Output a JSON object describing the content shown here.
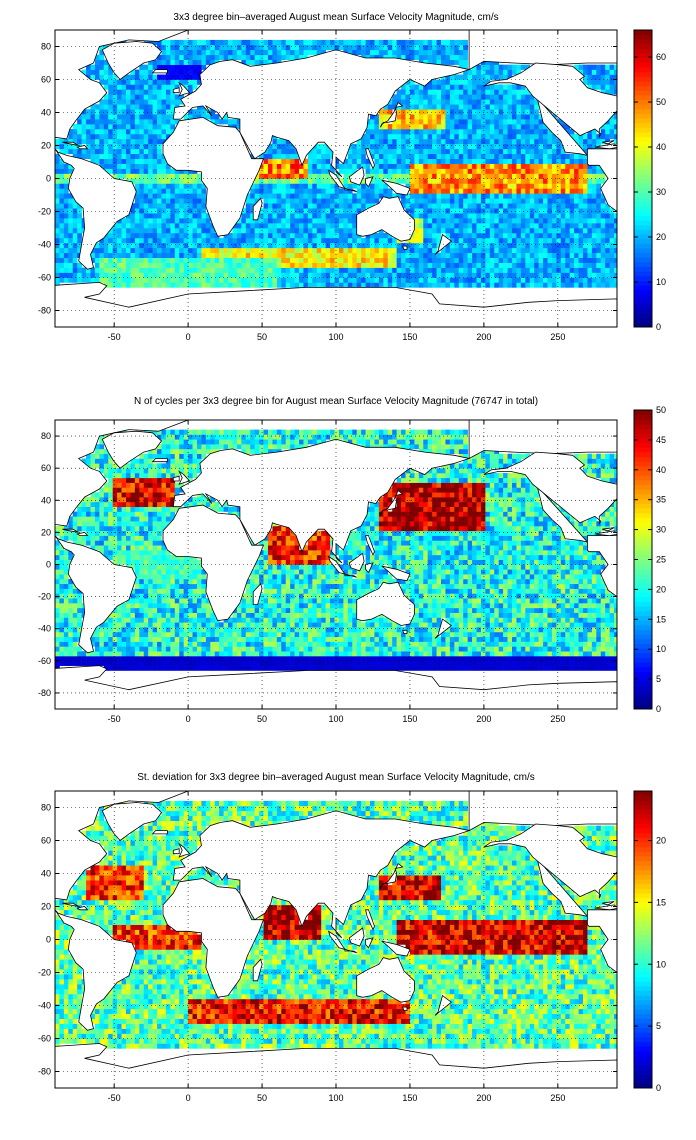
{
  "figure": {
    "panels": [
      {
        "id": "velocity-magnitude",
        "title": "3x3 degree bin–averaged August mean Surface Velocity Magnitude, cm/s",
        "colorbar": {
          "min": 0,
          "max": 66,
          "ticks": [
            0,
            10,
            20,
            30,
            40,
            50,
            60
          ]
        },
        "zones": [
          {
            "lat": [
              60,
              70
            ],
            "lon": [
              -20,
              10
            ],
            "value": 8
          },
          {
            "lat": [
              -10,
              10
            ],
            "lon": [
              150,
              270
            ],
            "value": 48
          },
          {
            "lat": [
              30,
              42
            ],
            "lon": [
              130,
              175
            ],
            "value": 45
          },
          {
            "lat": [
              0,
              12
            ],
            "lon": [
              45,
              80
            ],
            "value": 50
          },
          {
            "lat": [
              -55,
              -42
            ],
            "lon": [
              10,
              140
            ],
            "value": 42
          },
          {
            "lat": [
              -65,
              -48
            ],
            "lon": [
              -60,
              60
            ],
            "value": 30
          },
          {
            "lat": [
              -40,
              -25
            ],
            "lon": [
              140,
              160
            ],
            "value": 38
          }
        ]
      },
      {
        "id": "cycle-count",
        "title": "N of cycles per 3x3 degree bin for August mean Surface Velocity Magnitude (76747 in total)",
        "colorbar": {
          "min": 0,
          "max": 50,
          "ticks": [
            0,
            5,
            10,
            15,
            20,
            25,
            30,
            35,
            40,
            45,
            50
          ]
        },
        "zones": [
          {
            "lat": [
              20,
              50
            ],
            "lon": [
              130,
              200
            ],
            "value": 48
          },
          {
            "lat": [
              35,
              55
            ],
            "lon": [
              -50,
              -10
            ],
            "value": 45
          },
          {
            "lat": [
              0,
              25
            ],
            "lon": [
              55,
              95
            ],
            "value": 42
          },
          {
            "lat": [
              -66,
              -58
            ],
            "lon": [
              -90,
              290
            ],
            "value": 4
          },
          {
            "lat": [
              -10,
              10
            ],
            "lon": [
              -50,
              10
            ],
            "value": 22
          }
        ]
      },
      {
        "id": "standard-deviation",
        "title": "St. deviation for 3x3 degree bin–averaged August mean Surface Velocity Magnitude, cm/s",
        "colorbar": {
          "min": 0,
          "max": 24,
          "ticks": [
            0,
            5,
            10,
            15,
            20
          ]
        },
        "zones": [
          {
            "lat": [
              -10,
              12
            ],
            "lon": [
              140,
              270
            ],
            "value": 22
          },
          {
            "lat": [
              -50,
              -35
            ],
            "lon": [
              0,
              150
            ],
            "value": 21
          },
          {
            "lat": [
              0,
              20
            ],
            "lon": [
              50,
              90
            ],
            "value": 23
          },
          {
            "lat": [
              -5,
              8
            ],
            "lon": [
              -50,
              10
            ],
            "value": 20
          },
          {
            "lat": [
              25,
              45
            ],
            "lon": [
              -70,
              -30
            ],
            "value": 20
          },
          {
            "lat": [
              25,
              40
            ],
            "lon": [
              130,
              170
            ],
            "value": 22
          }
        ]
      }
    ],
    "x_ticks": [
      -50,
      0,
      50,
      100,
      150,
      200,
      250
    ],
    "y_ticks": [
      -80,
      -60,
      -40,
      -20,
      0,
      20,
      40,
      60,
      80
    ],
    "grid": "dotted"
  },
  "chart_data": [
    {
      "type": "heatmap",
      "title": "3x3 degree bin–averaged August mean Surface Velocity Magnitude, cm/s",
      "xlabel": "",
      "ylabel": "",
      "xlim": [
        -90,
        290
      ],
      "ylim": [
        -90,
        90
      ],
      "xticks": [
        -50,
        0,
        50,
        100,
        150,
        200,
        250
      ],
      "yticks": [
        -80,
        -60,
        -40,
        -20,
        0,
        20,
        40,
        60,
        80
      ],
      "bin_size_deg": 3,
      "colorscale": "jet",
      "color_range": [
        0,
        66
      ],
      "grid": true,
      "legend": "colorbar-right"
    },
    {
      "type": "heatmap",
      "title": "N of cycles per 3x3 degree bin for August mean Surface Velocity Magnitude (76747 in total)",
      "xlabel": "",
      "ylabel": "",
      "xlim": [
        -90,
        290
      ],
      "ylim": [
        -90,
        90
      ],
      "xticks": [
        -50,
        0,
        50,
        100,
        150,
        200,
        250
      ],
      "yticks": [
        -80,
        -60,
        -40,
        -20,
        0,
        20,
        40,
        60,
        80
      ],
      "bin_size_deg": 3,
      "colorscale": "jet",
      "color_range": [
        0,
        50
      ],
      "total_cycles": 76747,
      "grid": true,
      "legend": "colorbar-right"
    },
    {
      "type": "heatmap",
      "title": "St. deviation for 3x3 degree bin–averaged August mean Surface Velocity Magnitude, cm/s",
      "xlabel": "",
      "ylabel": "",
      "xlim": [
        -90,
        290
      ],
      "ylim": [
        -90,
        90
      ],
      "xticks": [
        -50,
        0,
        50,
        100,
        150,
        200,
        250
      ],
      "yticks": [
        -80,
        -60,
        -40,
        -20,
        0,
        20,
        40,
        60,
        80
      ],
      "bin_size_deg": 3,
      "colorscale": "jet",
      "color_range": [
        0,
        24
      ],
      "grid": true,
      "legend": "colorbar-right"
    }
  ]
}
